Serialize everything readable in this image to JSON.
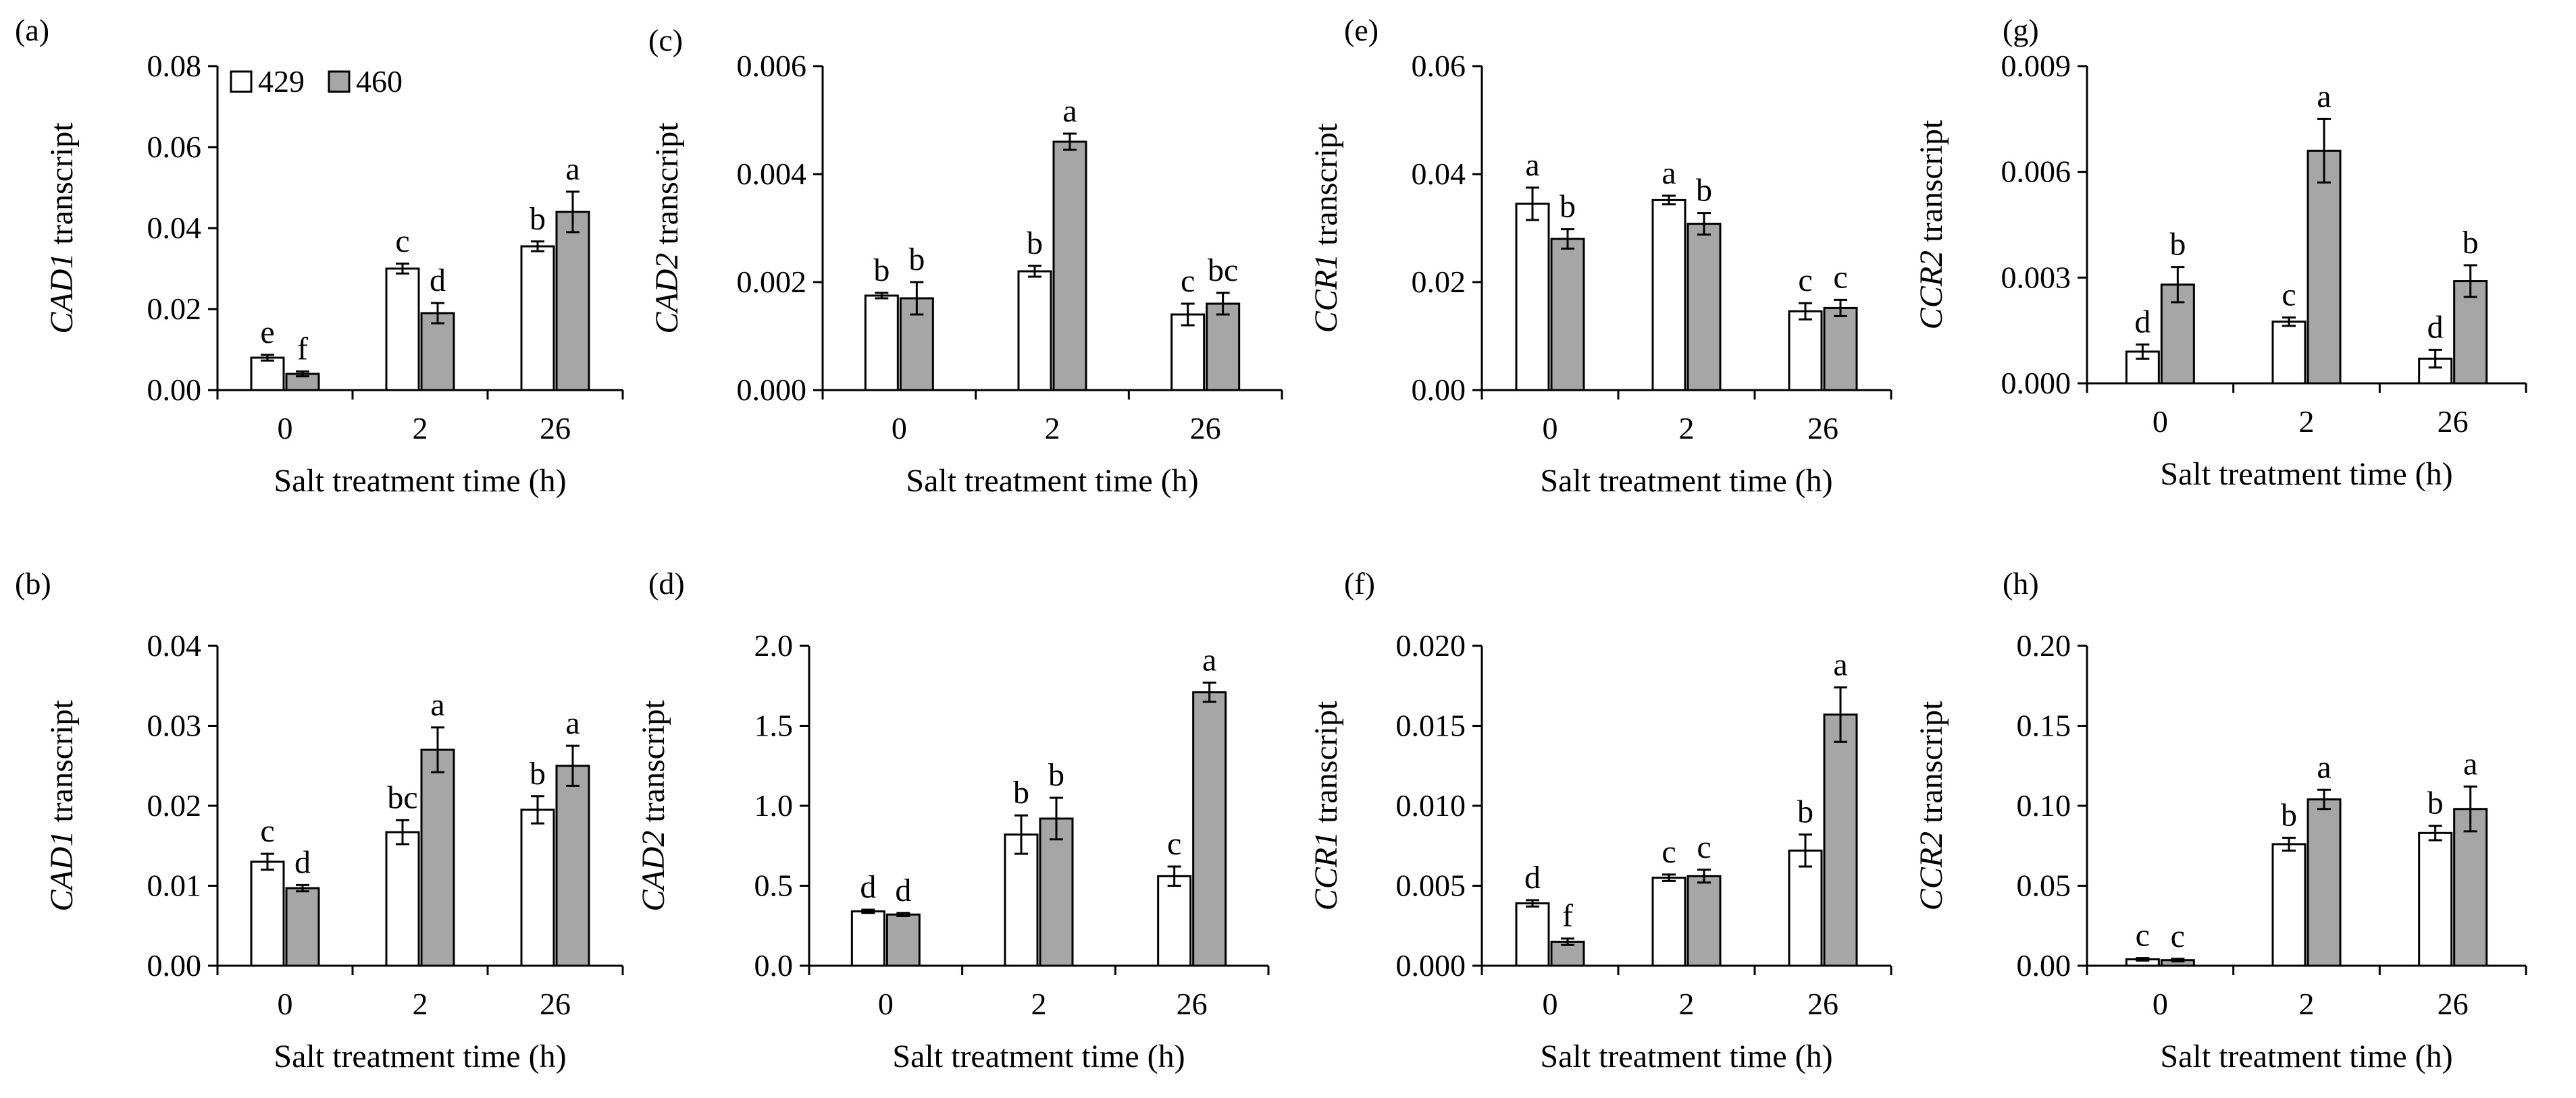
{
  "colors": {
    "series_429": "#ffffff",
    "series_460": "#a6a6a6",
    "axis": "#000000"
  },
  "chart_data": [
    {
      "panel": "(a)",
      "type": "bar",
      "ylabel_gene": "CAD1",
      "ylabel_suffix": " transcript",
      "xlabel": "Salt treatment time (h)",
      "categories": [
        "0",
        "2",
        "26"
      ],
      "ylim": [
        0,
        0.08
      ],
      "yticks": [
        "0.00",
        "0.02",
        "0.04",
        "0.06",
        "0.08"
      ],
      "legend": [
        "429",
        "460"
      ],
      "series": [
        {
          "name": "429",
          "values": [
            0.008,
            0.03,
            0.0355
          ],
          "errors": [
            0.0007,
            0.0012,
            0.0012
          ],
          "letters": [
            "e",
            "c",
            "b"
          ]
        },
        {
          "name": "460",
          "values": [
            0.004,
            0.019,
            0.044
          ],
          "errors": [
            0.0006,
            0.0025,
            0.005
          ],
          "letters": [
            "f",
            "d",
            "a"
          ]
        }
      ]
    },
    {
      "panel": "(b)",
      "type": "bar",
      "ylabel_gene": "CAD1",
      "ylabel_suffix": " transcript",
      "xlabel": "Salt treatment time (h)",
      "categories": [
        "0",
        "2",
        "26"
      ],
      "ylim": [
        0,
        0.04
      ],
      "yticks": [
        "0.00",
        "0.01",
        "0.02",
        "0.03",
        "0.04"
      ],
      "series": [
        {
          "name": "429",
          "values": [
            0.013,
            0.0167,
            0.0195
          ],
          "errors": [
            0.001,
            0.0015,
            0.0017
          ],
          "letters": [
            "c",
            "bc",
            "b"
          ]
        },
        {
          "name": "460",
          "values": [
            0.0097,
            0.027,
            0.025
          ],
          "errors": [
            0.0004,
            0.0028,
            0.0025
          ],
          "letters": [
            "d",
            "a",
            "a"
          ]
        }
      ]
    },
    {
      "panel": "(c)",
      "type": "bar",
      "ylabel_gene": "CAD2",
      "ylabel_suffix": " transcript",
      "xlabel": "Salt treatment time (h)",
      "categories": [
        "0",
        "2",
        "26"
      ],
      "ylim": [
        0,
        0.006
      ],
      "yticks": [
        "0.000",
        "0.002",
        "0.004",
        "0.006"
      ],
      "series": [
        {
          "name": "429",
          "values": [
            0.00175,
            0.0022,
            0.0014
          ],
          "errors": [
            5e-05,
            0.0001,
            0.0002
          ],
          "letters": [
            "b",
            "b",
            "c"
          ]
        },
        {
          "name": "460",
          "values": [
            0.0017,
            0.0046,
            0.0016
          ],
          "errors": [
            0.0003,
            0.00015,
            0.0002
          ],
          "letters": [
            "b",
            "a",
            "bc"
          ]
        }
      ]
    },
    {
      "panel": "(d)",
      "type": "bar",
      "ylabel_gene": "CAD2",
      "ylabel_suffix": " transcript",
      "xlabel": "Salt treatment time (h)",
      "categories": [
        "0",
        "2",
        "26"
      ],
      "ylim": [
        0,
        2.0
      ],
      "yticks": [
        "0.0",
        "0.5",
        "1.0",
        "1.5",
        "2.0"
      ],
      "series": [
        {
          "name": "429",
          "values": [
            0.34,
            0.82,
            0.56
          ],
          "errors": [
            0.01,
            0.12,
            0.06
          ],
          "letters": [
            "d",
            "b",
            "c"
          ]
        },
        {
          "name": "460",
          "values": [
            0.32,
            0.92,
            1.71
          ],
          "errors": [
            0.01,
            0.13,
            0.06
          ],
          "letters": [
            "d",
            "b",
            "a"
          ]
        }
      ]
    },
    {
      "panel": "(e)",
      "type": "bar",
      "ylabel_gene": "CCR1",
      "ylabel_suffix": " transcript",
      "xlabel": "Salt treatment time (h)",
      "categories": [
        "0",
        "2",
        "26"
      ],
      "ylim": [
        0,
        0.06
      ],
      "yticks": [
        "0.00",
        "0.02",
        "0.04",
        "0.06"
      ],
      "series": [
        {
          "name": "429",
          "values": [
            0.0345,
            0.0352,
            0.0146
          ],
          "errors": [
            0.003,
            0.0008,
            0.0015
          ],
          "letters": [
            "a",
            "a",
            "c"
          ]
        },
        {
          "name": "460",
          "values": [
            0.028,
            0.0308,
            0.0152
          ],
          "errors": [
            0.0018,
            0.002,
            0.0015
          ],
          "letters": [
            "b",
            "b",
            "c"
          ]
        }
      ]
    },
    {
      "panel": "(f)",
      "type": "bar",
      "ylabel_gene": "CCR1",
      "ylabel_suffix": " transcript",
      "xlabel": "Salt treatment time (h)",
      "categories": [
        "0",
        "2",
        "26"
      ],
      "ylim": [
        0,
        0.02
      ],
      "yticks": [
        "0.000",
        "0.005",
        "0.010",
        "0.015",
        "0.020"
      ],
      "series": [
        {
          "name": "429",
          "values": [
            0.0039,
            0.0055,
            0.0072
          ],
          "errors": [
            0.0002,
            0.0002,
            0.001
          ],
          "letters": [
            "d",
            "c",
            "b"
          ]
        },
        {
          "name": "460",
          "values": [
            0.0015,
            0.0056,
            0.0157
          ],
          "errors": [
            0.0002,
            0.0004,
            0.0017
          ],
          "letters": [
            "f",
            "c",
            "a"
          ]
        }
      ]
    },
    {
      "panel": "(g)",
      "type": "bar",
      "ylabel_gene": "CCR2",
      "ylabel_suffix": " transcript",
      "xlabel": "Salt treatment time (h)",
      "categories": [
        "0",
        "2",
        "26"
      ],
      "ylim": [
        0,
        0.009
      ],
      "yticks": [
        "0.000",
        "0.003",
        "0.006",
        "0.009"
      ],
      "series": [
        {
          "name": "429",
          "values": [
            0.0009,
            0.00175,
            0.0007
          ],
          "errors": [
            0.0002,
            0.00012,
            0.00025
          ],
          "letters": [
            "d",
            "c",
            "d"
          ]
        },
        {
          "name": "460",
          "values": [
            0.0028,
            0.0066,
            0.0029
          ],
          "errors": [
            0.0005,
            0.0009,
            0.00045
          ],
          "letters": [
            "b",
            "a",
            "b"
          ]
        }
      ]
    },
    {
      "panel": "(h)",
      "type": "bar",
      "ylabel_gene": "CCR2",
      "ylabel_suffix": " transcript",
      "xlabel": "Salt treatment time (h)",
      "categories": [
        "0",
        "2",
        "26"
      ],
      "ylim": [
        0,
        0.2
      ],
      "yticks": [
        "0.00",
        "0.05",
        "0.10",
        "0.15",
        "0.20"
      ],
      "series": [
        {
          "name": "429",
          "values": [
            0.004,
            0.076,
            0.083
          ],
          "errors": [
            0.0008,
            0.004,
            0.0045
          ],
          "letters": [
            "c",
            "b",
            "b"
          ]
        },
        {
          "name": "460",
          "values": [
            0.0035,
            0.104,
            0.098
          ],
          "errors": [
            0.0008,
            0.006,
            0.014
          ],
          "letters": [
            "c",
            "a",
            "a"
          ]
        }
      ]
    }
  ]
}
